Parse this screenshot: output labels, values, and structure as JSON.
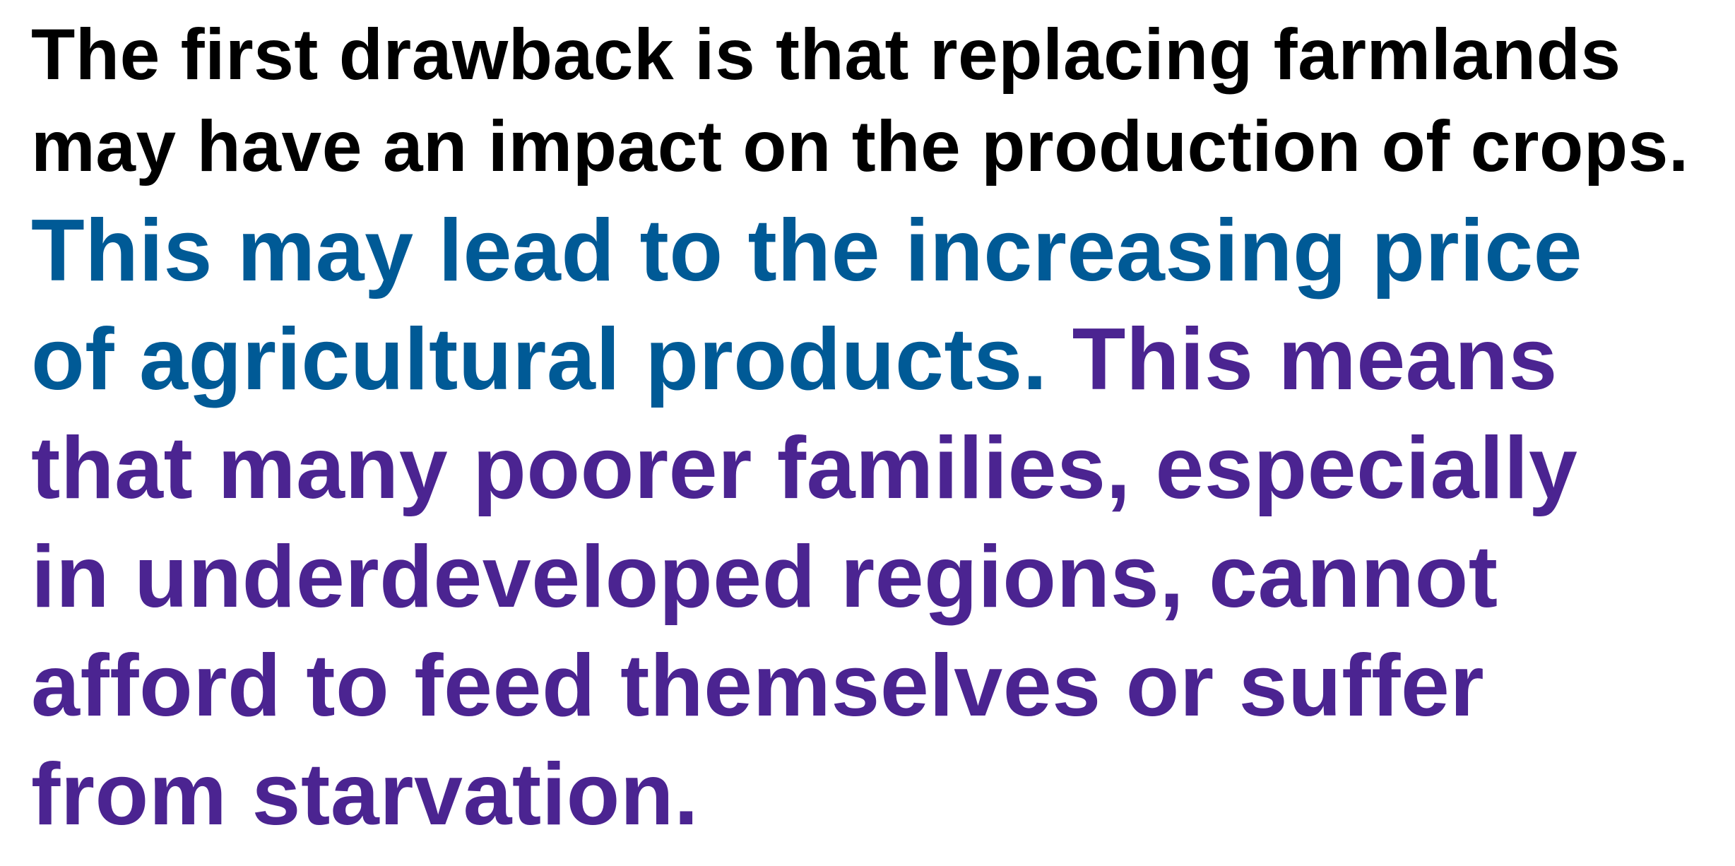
{
  "colors": {
    "sentence1": "#000000",
    "sentence2": "#005a96",
    "sentence3": "#4b2491",
    "background": "#ffffff"
  },
  "passage": {
    "sentence1": {
      "line1": "The first drawback is that replacing farmlands",
      "line2": "may have an impact on the production of crops."
    },
    "sentence2": {
      "line1": "This may lead to the increasing price",
      "line2": "of agricultural products. "
    },
    "sentence3": {
      "line2_start": "This means",
      "line3": "that many poorer families, especially",
      "line4": "in underdeveloped regions, cannot",
      "line5": "afford to feed themselves or suffer",
      "line6": "from starvation."
    }
  }
}
